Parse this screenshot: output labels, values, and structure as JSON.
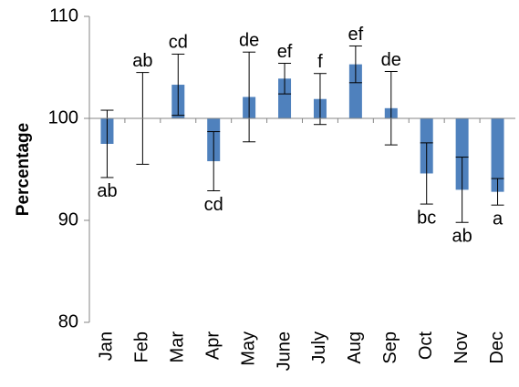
{
  "chart_data": {
    "type": "bar",
    "y_label": "Percentage",
    "categories": [
      "Jan",
      "Feb",
      "Mar",
      "Apr",
      "May",
      "June",
      "July",
      "Aug",
      "Sep",
      "Oct",
      "Nov",
      "Dec"
    ],
    "values": [
      97.5,
      100,
      103.3,
      95.8,
      102.1,
      103.9,
      101.9,
      105.3,
      101,
      94.6,
      93,
      92.8
    ],
    "errors": [
      3.3,
      4.5,
      3,
      2.9,
      4.4,
      1.5,
      2.5,
      1.8,
      3.6,
      3,
      3.2,
      1.3
    ],
    "letters": [
      "ab",
      "ab",
      "cd",
      "cd",
      "de",
      "ef",
      "f",
      "ef",
      "de",
      "bc",
      "ab",
      "a"
    ],
    "base": 100,
    "color": "#4f81bd",
    "ylim": [
      80,
      110
    ],
    "yticks": [
      80,
      90,
      100,
      110
    ]
  }
}
